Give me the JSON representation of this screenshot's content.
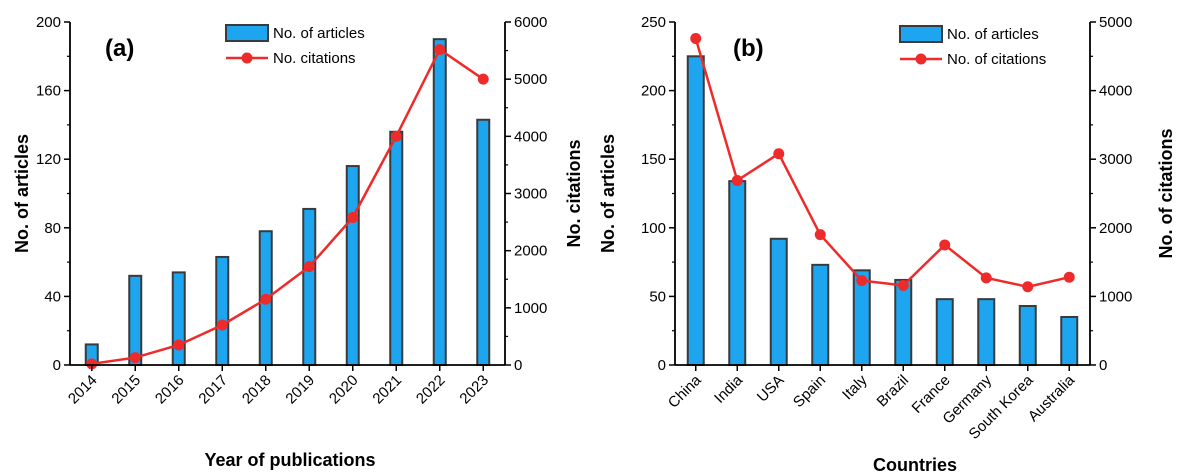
{
  "colors": {
    "bar": "#1ea5f0",
    "bar_edge": "#3a3a3a",
    "line": "#ee2b2b",
    "axis": "#000000"
  },
  "chart_data": [
    {
      "type": "bar+line",
      "panel_label": "(a)",
      "categories": [
        "2014",
        "2015",
        "2016",
        "2017",
        "2018",
        "2019",
        "2020",
        "2021",
        "2022",
        "2023"
      ],
      "series": [
        {
          "name": "No. of articles",
          "type": "bar",
          "axis": "left",
          "values": [
            12,
            52,
            54,
            63,
            78,
            91,
            116,
            136,
            190,
            143
          ]
        },
        {
          "name": "No. citations",
          "type": "line",
          "axis": "right",
          "values": [
            20,
            130,
            350,
            700,
            1150,
            1720,
            2580,
            4000,
            5520,
            5000
          ]
        }
      ],
      "xlabel": "Year of publications",
      "ylabel": "No. of articles",
      "y2label": "No. citations",
      "ylim": [
        0,
        200
      ],
      "yticks": [
        "0",
        "40",
        "80",
        "120",
        "160",
        "200"
      ],
      "y2lim": [
        0,
        6000
      ],
      "y2ticks": [
        "0",
        "1000",
        "2000",
        "3000",
        "4000",
        "5000",
        "6000"
      ],
      "legend_position": "top-center",
      "grid": false
    },
    {
      "type": "bar+line",
      "panel_label": "(b)",
      "categories": [
        "China",
        "India",
        "USA",
        "Spain",
        "Italy",
        "Brazil",
        "France",
        "Germany",
        "South Korea",
        "Australia"
      ],
      "series": [
        {
          "name": "No. of articles",
          "type": "bar",
          "axis": "left",
          "values": [
            225,
            134,
            92,
            73,
            69,
            62,
            48,
            48,
            43,
            35
          ]
        },
        {
          "name": "No. of citations",
          "type": "line",
          "axis": "right",
          "values": [
            4760,
            2690,
            3080,
            1900,
            1230,
            1160,
            1750,
            1270,
            1140,
            1280
          ]
        }
      ],
      "xlabel": "Countries",
      "ylabel": "No. of articles",
      "y2label": "No. of citations",
      "ylim": [
        0,
        250
      ],
      "yticks": [
        "0",
        "50",
        "100",
        "150",
        "200",
        "250"
      ],
      "y2lim": [
        0,
        5000
      ],
      "y2ticks": [
        "0",
        "1000",
        "2000",
        "3000",
        "4000",
        "5000"
      ],
      "legend_position": "top-right",
      "grid": false
    }
  ]
}
